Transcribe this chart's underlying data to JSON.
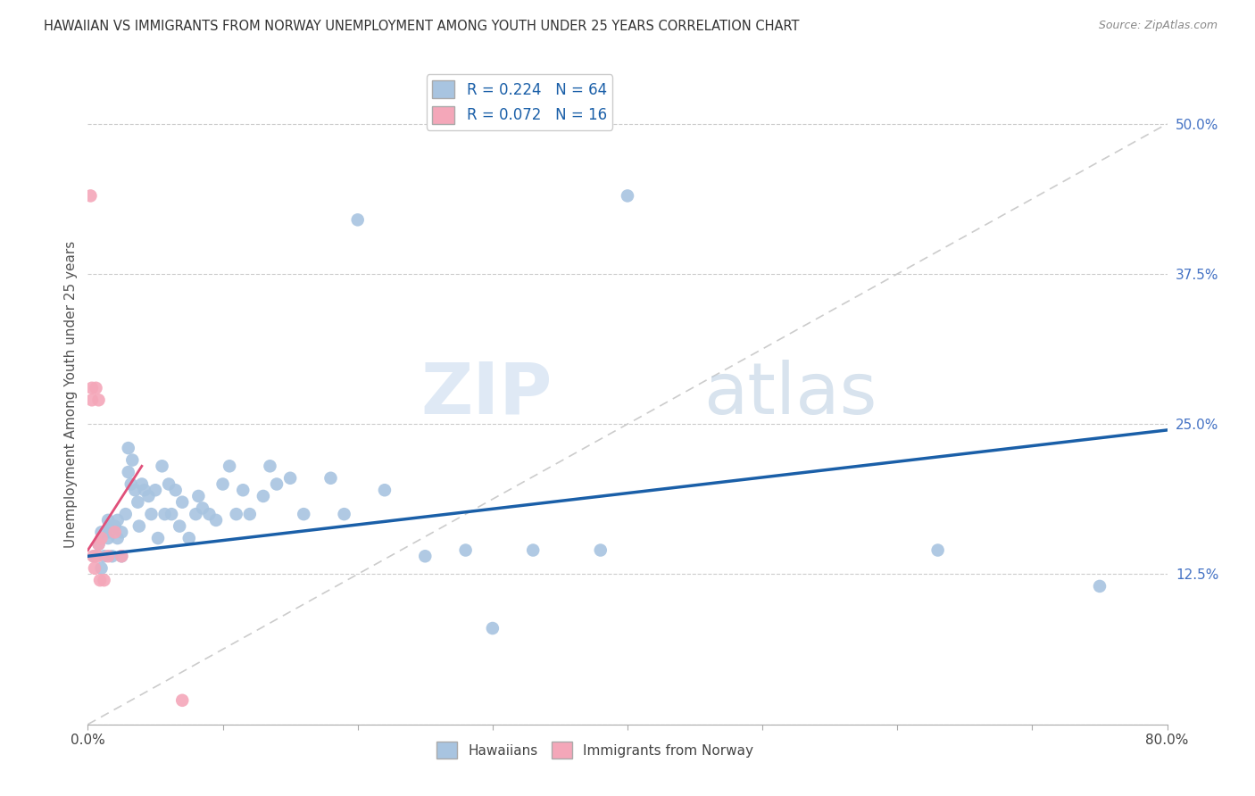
{
  "title": "HAWAIIAN VS IMMIGRANTS FROM NORWAY UNEMPLOYMENT AMONG YOUTH UNDER 25 YEARS CORRELATION CHART",
  "source": "Source: ZipAtlas.com",
  "ylabel": "Unemployment Among Youth under 25 years",
  "xlim": [
    0.0,
    0.8
  ],
  "ylim": [
    0.0,
    0.55
  ],
  "x_tick_pos": [
    0.0,
    0.1,
    0.2,
    0.3,
    0.4,
    0.5,
    0.6,
    0.7,
    0.8
  ],
  "x_tick_labels": [
    "0.0%",
    "",
    "",
    "",
    "",
    "",
    "",
    "",
    "80.0%"
  ],
  "y_ticks_right": [
    0.0,
    0.125,
    0.25,
    0.375,
    0.5
  ],
  "y_tick_labels_right": [
    "",
    "12.5%",
    "25.0%",
    "37.5%",
    "50.0%"
  ],
  "hawaiians_R": 0.224,
  "hawaiians_N": 64,
  "norway_R": 0.072,
  "norway_N": 16,
  "hawaiians_color": "#a8c4e0",
  "norway_color": "#f4a7b9",
  "trend_line_hawaii_color": "#1a5fa8",
  "trend_line_norway_color": "#e0507a",
  "diagonal_line_color": "#cccccc",
  "background_color": "#ffffff",
  "watermark_zip": "ZIP",
  "watermark_atlas": "atlas",
  "hawaiians_x": [
    0.005,
    0.008,
    0.01,
    0.01,
    0.012,
    0.015,
    0.015,
    0.016,
    0.017,
    0.018,
    0.02,
    0.022,
    0.022,
    0.025,
    0.025,
    0.028,
    0.03,
    0.03,
    0.032,
    0.033,
    0.035,
    0.037,
    0.038,
    0.04,
    0.042,
    0.045,
    0.047,
    0.05,
    0.052,
    0.055,
    0.057,
    0.06,
    0.062,
    0.065,
    0.068,
    0.07,
    0.075,
    0.08,
    0.082,
    0.085,
    0.09,
    0.095,
    0.1,
    0.105,
    0.11,
    0.115,
    0.12,
    0.13,
    0.135,
    0.14,
    0.15,
    0.16,
    0.18,
    0.19,
    0.2,
    0.22,
    0.25,
    0.28,
    0.3,
    0.33,
    0.38,
    0.4,
    0.63,
    0.75
  ],
  "hawaiians_y": [
    0.14,
    0.15,
    0.13,
    0.16,
    0.14,
    0.155,
    0.17,
    0.16,
    0.165,
    0.14,
    0.165,
    0.155,
    0.17,
    0.16,
    0.14,
    0.175,
    0.21,
    0.23,
    0.2,
    0.22,
    0.195,
    0.185,
    0.165,
    0.2,
    0.195,
    0.19,
    0.175,
    0.195,
    0.155,
    0.215,
    0.175,
    0.2,
    0.175,
    0.195,
    0.165,
    0.185,
    0.155,
    0.175,
    0.19,
    0.18,
    0.175,
    0.17,
    0.2,
    0.215,
    0.175,
    0.195,
    0.175,
    0.19,
    0.215,
    0.2,
    0.205,
    0.175,
    0.205,
    0.175,
    0.42,
    0.195,
    0.14,
    0.145,
    0.08,
    0.145,
    0.145,
    0.44,
    0.145,
    0.115
  ],
  "norway_x": [
    0.002,
    0.003,
    0.003,
    0.004,
    0.005,
    0.006,
    0.007,
    0.008,
    0.008,
    0.009,
    0.01,
    0.012,
    0.015,
    0.02,
    0.025,
    0.07
  ],
  "norway_y": [
    0.44,
    0.28,
    0.27,
    0.14,
    0.13,
    0.28,
    0.14,
    0.15,
    0.27,
    0.12,
    0.155,
    0.12,
    0.14,
    0.16,
    0.14,
    0.02
  ],
  "hawaii_trend_x0": 0.0,
  "hawaii_trend_y0": 0.14,
  "hawaii_trend_x1": 0.8,
  "hawaii_trend_y1": 0.245,
  "norway_trend_x0": 0.0,
  "norway_trend_y0": 0.145,
  "norway_trend_x1": 0.04,
  "norway_trend_y1": 0.215
}
